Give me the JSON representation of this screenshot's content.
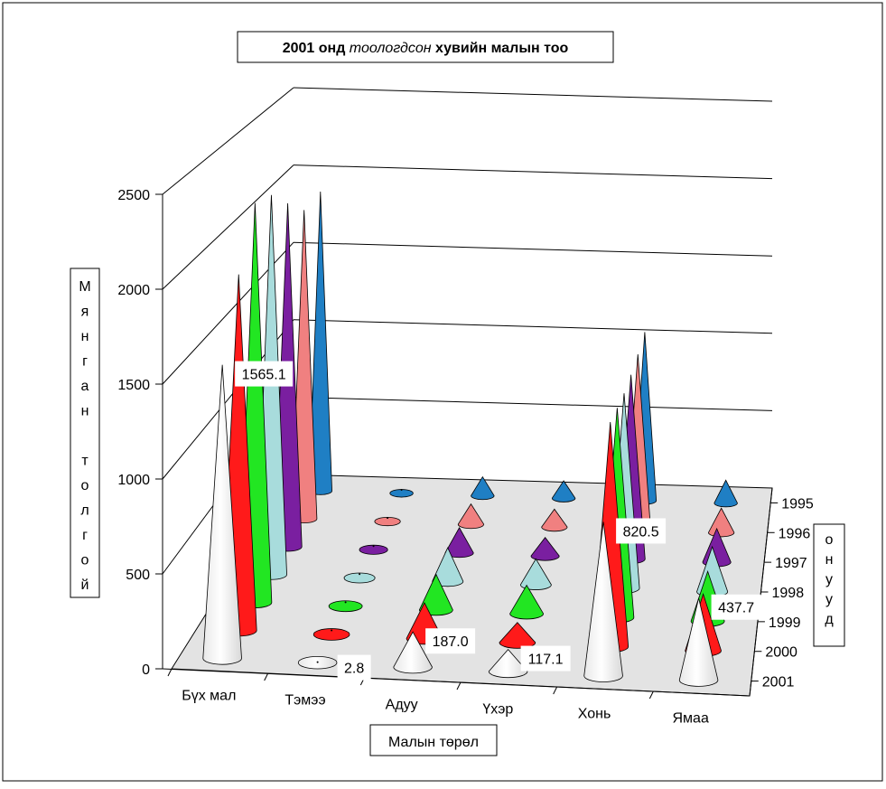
{
  "chart_data": {
    "type": "bar",
    "bar_shape": "cone",
    "title": {
      "part1": "2001 онд ",
      "part2": "тоологдсон",
      "part3": " хувийн малын тоо"
    },
    "xlabel": "Малын төрөл",
    "ylabel": "Мянган толгой",
    "zlabel": "онууд",
    "categories": [
      "Бүх мал",
      "Тэмээ",
      "Адуу",
      "Үхэр",
      "Хонь",
      "Ямаа"
    ],
    "y_ticks": [
      "0",
      "500",
      "1000",
      "1500",
      "2000",
      "2500"
    ],
    "ylim": [
      0,
      2500
    ],
    "grid": true,
    "series": [
      {
        "name": "1995",
        "color": "#1f7fc4",
        "values": [
          1900,
          22,
          120,
          110,
          1070,
          145
        ]
      },
      {
        "name": "1996",
        "color": "#f08080",
        "values": [
          1900,
          22,
          125,
          110,
          1080,
          150
        ]
      },
      {
        "name": "1997",
        "color": "#7a1fa0",
        "values": [
          2050,
          22,
          150,
          110,
          1100,
          200
        ]
      },
      {
        "name": "1998",
        "color": "#a8dcdc",
        "values": [
          2200,
          22,
          195,
          150,
          1130,
          260
        ]
      },
      {
        "name": "1999",
        "color": "#22e622",
        "values": [
          2250,
          22,
          200,
          160,
          1180,
          280
        ]
      },
      {
        "name": "2000",
        "color": "#ff1a1a",
        "values": [
          1950,
          22,
          195,
          110,
          1230,
          310
        ]
      },
      {
        "name": "2001",
        "color": "#ffffff",
        "values": [
          1565.1,
          2.8,
          187.0,
          117.1,
          820.5,
          437.7
        ]
      }
    ],
    "data_labels": [
      "1565.1",
      "2.8",
      "187.0",
      "117.1",
      "820.5",
      "437.7"
    ]
  }
}
